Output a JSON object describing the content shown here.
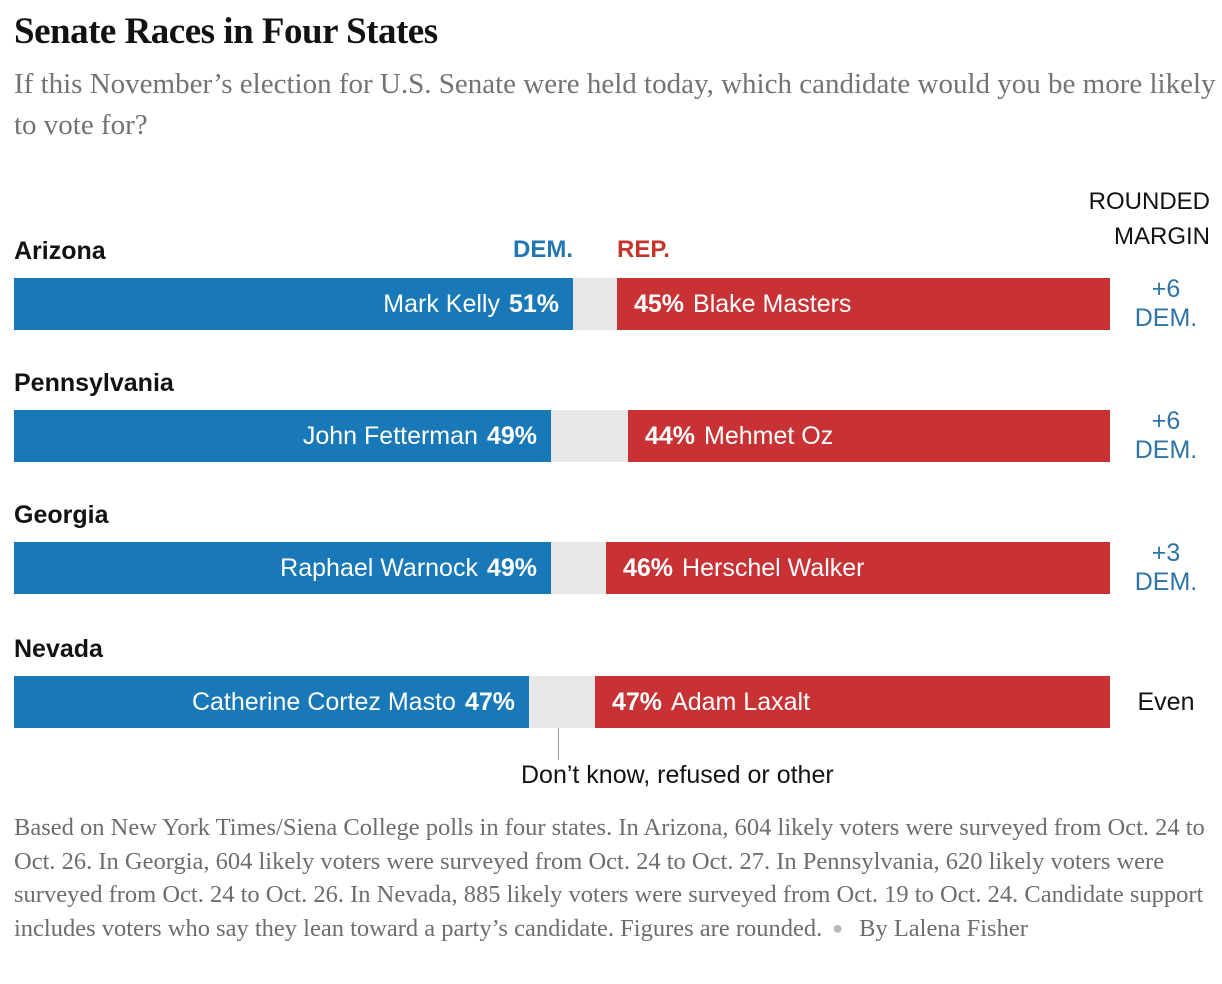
{
  "header": {
    "title": "Senate Races in Four States",
    "subtitle": "If this November’s election for U.S. Senate were held today, which candidate would you be more likely to vote for?",
    "rounded_margin_line1": "ROUNDED",
    "rounded_margin_line2": "MARGIN",
    "dem_column_label": "DEM.",
    "rep_column_label": "REP."
  },
  "chart_data": {
    "type": "bar",
    "subtype": "diverging-paired-horizontal-bars",
    "unit": "percent of likely voters",
    "axis_range": [
      0,
      100
    ],
    "races": [
      {
        "state": "Arizona",
        "dem_candidate": "Mark Kelly",
        "dem_pct": 51,
        "dem_pct_label": "51%",
        "rep_candidate": "Blake Masters",
        "rep_pct": 45,
        "rep_pct_label": "45%",
        "other_pct": 4,
        "margin": "+6 DEM.",
        "margin_line1": "+6",
        "margin_line2": "DEM."
      },
      {
        "state": "Pennsylvania",
        "dem_candidate": "John Fetterman",
        "dem_pct": 49,
        "dem_pct_label": "49%",
        "rep_candidate": "Mehmet Oz",
        "rep_pct": 44,
        "rep_pct_label": "44%",
        "other_pct": 7,
        "margin": "+6 DEM.",
        "margin_line1": "+6",
        "margin_line2": "DEM."
      },
      {
        "state": "Georgia",
        "dem_candidate": "Raphael Warnock",
        "dem_pct": 49,
        "dem_pct_label": "49%",
        "rep_candidate": "Herschel Walker",
        "rep_pct": 46,
        "rep_pct_label": "46%",
        "other_pct": 5,
        "margin": "+3 DEM.",
        "margin_line1": "+3",
        "margin_line2": "DEM."
      },
      {
        "state": "Nevada",
        "dem_candidate": "Catherine Cortez Masto",
        "dem_pct": 47,
        "dem_pct_label": "47%",
        "rep_candidate": "Adam Laxalt",
        "rep_pct": 47,
        "rep_pct_label": "47%",
        "other_pct": 6,
        "margin": "Even",
        "margin_line1": "Even",
        "margin_line2": ""
      }
    ],
    "annotation": "Don’t know, refused or other",
    "legend": {
      "dem": "DEM.",
      "rep": "REP."
    }
  },
  "colors": {
    "dem_bar": "#1878b8",
    "rep_bar": "#c93235",
    "other_gap": "#e5e8e7",
    "dem_text": "#2d74a7",
    "rep_text": "#c3362e",
    "even_text": "#121212",
    "note_gray": "#6d6d6d"
  },
  "footer": {
    "note": "Based on New York Times/Siena College polls in four states. In Arizona, 604 likely voters were surveyed from Oct. 24 to Oct. 26. In Georgia, 604 likely voters were surveyed from Oct. 24 to Oct. 27. In Pennsylvania, 620 likely voters were surveyed from Oct. 24 to Oct. 26. In Nevada, 885 likely voters were surveyed from Oct. 19 to Oct. 24. Candidate support includes voters who say they lean toward a party’s candidate. Figures are rounded.",
    "bullet": "●",
    "byline": "By Lalena Fisher"
  }
}
